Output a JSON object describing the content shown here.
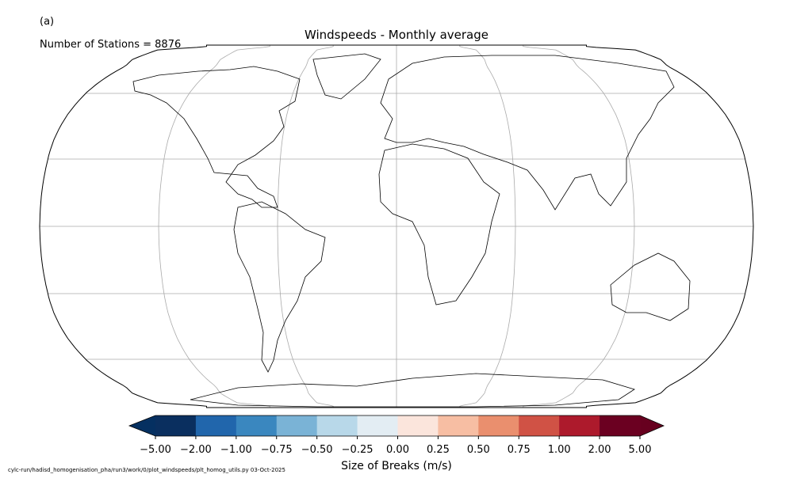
{
  "panel_label": "(a)",
  "stations_text": "Number of Stations = 8876",
  "title": "Windspeeds - Monthly average",
  "footer": "cylc-run/hadisd_homogenisation_pha/run3/work/0/plot_windspeeds/plt_homog_utils.py   03-Oct-2025",
  "colorbar": {
    "label": "Size of Breaks (m/s)",
    "boundaries": [
      {
        "value": -5,
        "label": "−5.00"
      },
      {
        "value": -2,
        "label": "−2.00"
      },
      {
        "value": -1,
        "label": "−1.00"
      },
      {
        "value": -0.75,
        "label": "−0.75"
      },
      {
        "value": -0.5,
        "label": "−0.50"
      },
      {
        "value": -0.25,
        "label": "−0.25"
      },
      {
        "value": 0,
        "label": "0.00"
      },
      {
        "value": 0.25,
        "label": "0.25"
      },
      {
        "value": 0.5,
        "label": "0.50"
      },
      {
        "value": 0.75,
        "label": "0.75"
      },
      {
        "value": 1,
        "label": "1.00"
      },
      {
        "value": 2,
        "label": "2.00"
      },
      {
        "value": 5,
        "label": "5.00"
      }
    ],
    "colors": [
      "#0a2f5f",
      "#2166ac",
      "#3a87bf",
      "#7ab3d6",
      "#b8d8e9",
      "#e3edf3",
      "#fbe5dc",
      "#f7bea3",
      "#ea8f6e",
      "#d05245",
      "#ad1a2c",
      "#6b0021"
    ],
    "under_color": "#053061",
    "over_color": "#67001f"
  }
}
